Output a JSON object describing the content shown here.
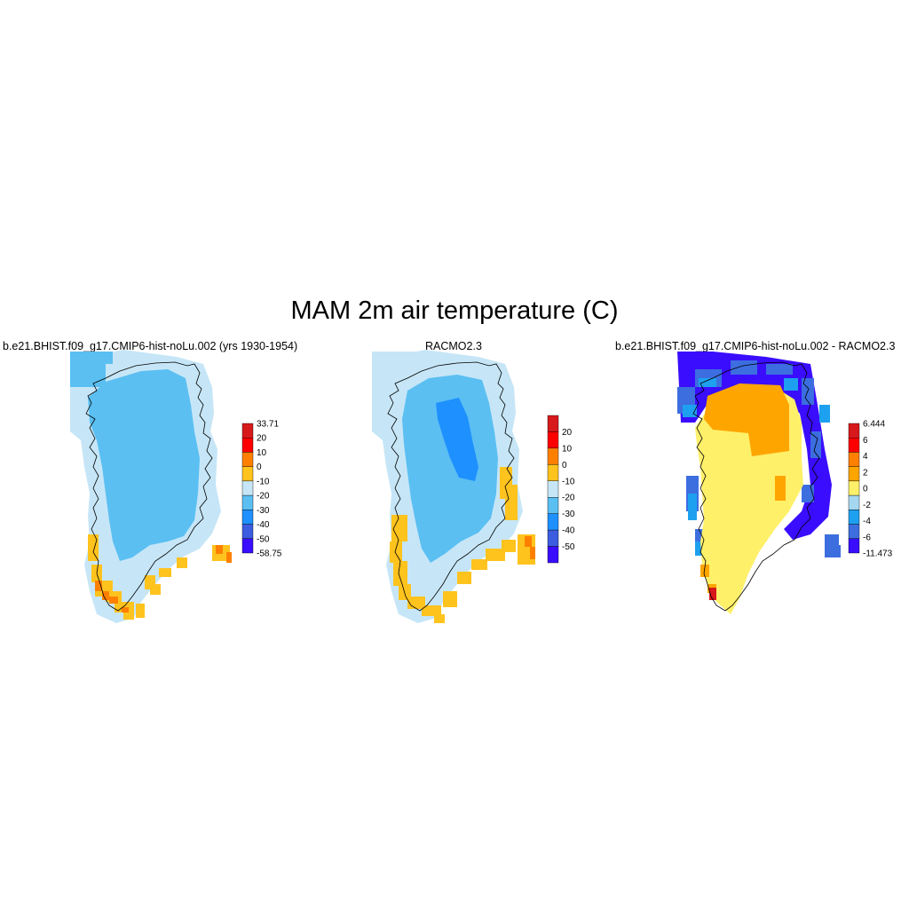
{
  "figure": {
    "title": "MAM 2m air temperature (C)"
  },
  "chart_data": [
    {
      "type": "heatmap",
      "title": "b.e21.BHIST.f09_g17.CMIP6-hist-noLu.002 (yrs 1930-1954)",
      "colorbar": {
        "labels": [
          "33.71",
          "20",
          "10",
          "0",
          "-10",
          "-20",
          "-30",
          "-40",
          "-50",
          "-58.75"
        ],
        "colors": [
          "#d7191c",
          "#ff0000",
          "#ff8000",
          "#ffc31e",
          "#c6e6f7",
          "#5bbff2",
          "#1e90ff",
          "#3c5de0",
          "#3a0dff"
        ]
      },
      "interior_class": "-30 to -20",
      "margin_class": "-20 to -10",
      "south_coast_classes": [
        "0 to 10",
        "10 to 20"
      ]
    },
    {
      "type": "heatmap",
      "title": "RACMO2.3",
      "colorbar": {
        "labels": [
          "20",
          "10",
          "0",
          "-10",
          "-20",
          "-30",
          "-40",
          "-50"
        ],
        "colors": [
          "#d7191c",
          "#ff0000",
          "#ff8000",
          "#ffc31e",
          "#c6e6f7",
          "#5bbff2",
          "#1e90ff",
          "#3c5de0",
          "#3a0dff"
        ]
      },
      "interior_class": "-30 to -20",
      "core_class": "-40 to -30",
      "margin_class": "-20 to -10",
      "south_coast_classes": [
        "0 to -10"
      ]
    },
    {
      "type": "heatmap",
      "title": "b.e21.BHIST.f09_g17.CMIP6-hist-noLu.002 - RACMO2.3",
      "colorbar": {
        "labels": [
          "6.444",
          "6",
          "4",
          "2",
          "0",
          "-2",
          "-4",
          "-6",
          "-11.473"
        ],
        "colors": [
          "#d7191c",
          "#ff0000",
          "#ff8000",
          "#ffa500",
          "#fff06a",
          "#a6d7f0",
          "#1ea0f0",
          "#3c6ee0",
          "#3a0dff"
        ]
      },
      "north_class": "2 to 4",
      "interior_class": "0 to 2",
      "margin_classes": [
        "-2 to -4",
        "-4 to -6",
        "< -6"
      ]
    }
  ]
}
